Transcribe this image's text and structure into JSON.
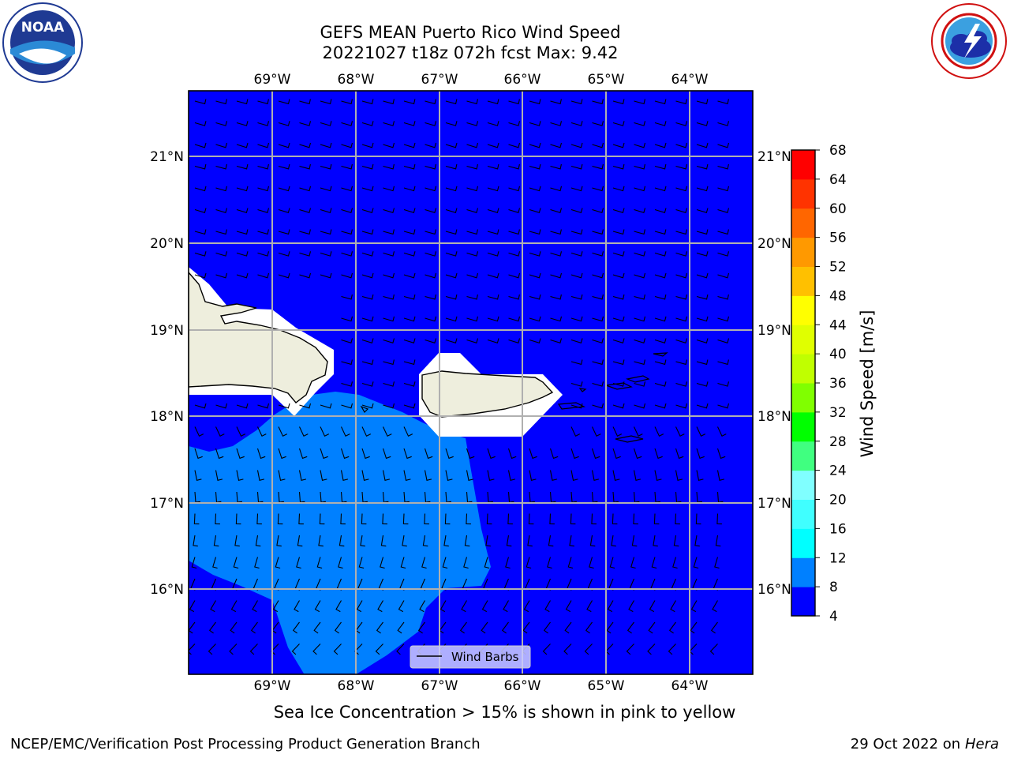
{
  "title_line1": "GEFS MEAN Puerto Rico Wind Speed",
  "title_line2": "20221027 t18z 072h fcst   Max: 9.42",
  "lon_labels": [
    "69°W",
    "68°W",
    "67°W",
    "66°W",
    "65°W",
    "64°W"
  ],
  "lat_labels": [
    "21°N",
    "20°N",
    "19°N",
    "18°N",
    "17°N",
    "16°N"
  ],
  "legend_label": "Wind Barbs",
  "colorbar": {
    "label": "Wind Speed [m/s]",
    "ticks": [
      "68",
      "64",
      "60",
      "56",
      "52",
      "48",
      "44",
      "40",
      "36",
      "32",
      "28",
      "24",
      "20",
      "16",
      "12",
      "8",
      "4"
    ],
    "colors": [
      "#0000ff",
      "#0080ff",
      "#00ffff",
      "#40ffff",
      "#80ffff",
      "#40ff80",
      "#00ff00",
      "#80ff00",
      "#c0ff00",
      "#e0ff00",
      "#ffff00",
      "#ffc000",
      "#ff9900",
      "#ff6600",
      "#ff3300",
      "#ff0000"
    ]
  },
  "colors": {
    "sea_low": "#0000ff",
    "sea_mid": "#0080ff",
    "land": "#eeeedd",
    "grid": "#b0b0b0"
  },
  "note": "Sea Ice Concentration > 15% is shown in pink to yellow",
  "footer_left": "NCEP/EMC/Verification Post Processing Product Generation Branch",
  "footer_right_date": "29 Oct 2022 on ",
  "footer_right_host": "Hera",
  "logo_left": {
    "icon": "noaa-logo",
    "text": "NOAA",
    "ring_text": "NATIONAL OCEANIC AND ATMOSPHERIC ADMINISTRATION · U.S. DEPARTMENT OF COMMERCE"
  },
  "logo_right": {
    "icon": "nws-logo",
    "ring_text": "NATIONAL WEATHER SERVICE"
  }
}
